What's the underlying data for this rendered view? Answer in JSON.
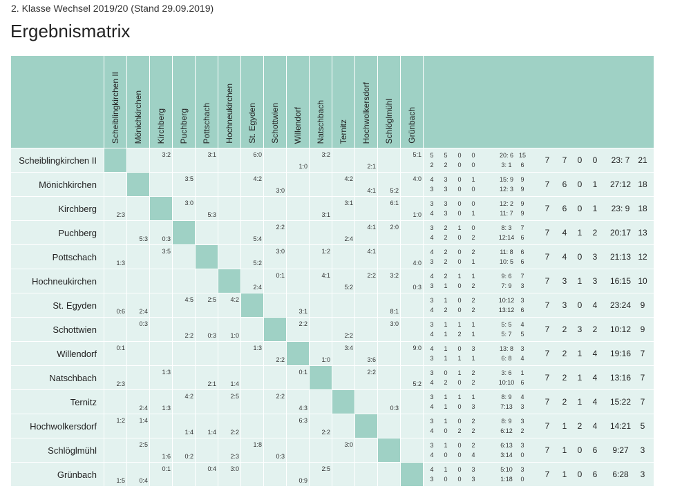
{
  "page": {
    "subtitle": "2. Klasse Wechsel 2019/20 (Stand 29.09.2019)",
    "title": "Ergebnismatrix"
  },
  "colors": {
    "header_bg": "#9fd1c5",
    "cell_bg": "#e3f2ef",
    "diagonal_bg": "#9fd1c5"
  },
  "teams": [
    "Scheiblingkirchen II",
    "Mönichkirchen",
    "Kirchberg",
    "Puchberg",
    "Pottschach",
    "Hochneukirchen",
    "St. Egyden",
    "Schottwien",
    "Willendorf",
    "Natschbach",
    "Ternitz",
    "Hochwolkersdorf",
    "Schlöglmühl",
    "Grünbach"
  ],
  "cells": [
    [
      null,
      null,
      {
        "h": "3:2"
      },
      null,
      {
        "h": "3:1"
      },
      null,
      {
        "h": "6:0"
      },
      null,
      {
        "a": "1:0"
      },
      {
        "h": "3:2"
      },
      null,
      {
        "a": "2:1"
      },
      null,
      {
        "h": "5:1"
      }
    ],
    [
      null,
      null,
      null,
      {
        "h": "3:5"
      },
      null,
      null,
      {
        "h": "4:2"
      },
      {
        "a": "3:0"
      },
      null,
      null,
      {
        "h": "4:2"
      },
      {
        "a": "4:1"
      },
      {
        "a": "5:2"
      },
      {
        "h": "4:0"
      }
    ],
    [
      {
        "a": "2:3"
      },
      null,
      null,
      {
        "h": "3:0"
      },
      {
        "a": "5:3"
      },
      null,
      null,
      null,
      null,
      {
        "a": "3:1"
      },
      {
        "h": "3:1"
      },
      null,
      {
        "h": "6:1"
      },
      {
        "a": "1:0"
      }
    ],
    [
      null,
      {
        "a": "5:3"
      },
      {
        "a": "0:3"
      },
      null,
      null,
      null,
      {
        "a": "5:4"
      },
      {
        "h": "2:2"
      },
      null,
      null,
      {
        "a": "2:4"
      },
      {
        "h": "4:1"
      },
      {
        "h": "2:0"
      },
      null
    ],
    [
      {
        "a": "1:3"
      },
      null,
      {
        "h": "3:5"
      },
      null,
      null,
      null,
      {
        "a": "5:2"
      },
      {
        "h": "3:0"
      },
      null,
      {
        "h": "1:2"
      },
      null,
      {
        "h": "4:1"
      },
      null,
      {
        "a": "4:0"
      }
    ],
    [
      null,
      null,
      null,
      null,
      null,
      null,
      {
        "a": "2:4"
      },
      {
        "h": "0:1"
      },
      null,
      {
        "h": "4:1"
      },
      {
        "a": "5:2"
      },
      {
        "h": "2:2"
      },
      {
        "h": "3:2"
      },
      {
        "a": "0:3"
      }
    ],
    [
      {
        "a": "0:6"
      },
      {
        "a": "2:4"
      },
      null,
      {
        "h": "4:5"
      },
      {
        "h": "2:5"
      },
      {
        "h": "4:2"
      },
      null,
      null,
      {
        "a": "3:1"
      },
      null,
      null,
      null,
      {
        "a": "8:1"
      },
      null
    ],
    [
      null,
      {
        "h": "0:3"
      },
      null,
      {
        "a": "2:2"
      },
      {
        "a": "0:3"
      },
      {
        "a": "1:0"
      },
      null,
      null,
      {
        "h": "2:2"
      },
      null,
      {
        "a": "2:2"
      },
      null,
      {
        "h": "3:0"
      },
      null
    ],
    [
      {
        "h": "0:1"
      },
      null,
      null,
      null,
      null,
      null,
      {
        "h": "1:3"
      },
      {
        "a": "2:2"
      },
      null,
      {
        "a": "1:0"
      },
      {
        "h": "3:4"
      },
      {
        "a": "3:6"
      },
      null,
      {
        "h": "9:0"
      }
    ],
    [
      {
        "a": "2:3"
      },
      null,
      {
        "h": "1:3"
      },
      null,
      {
        "a": "2:1"
      },
      {
        "a": "1:4"
      },
      null,
      null,
      {
        "h": "0:1"
      },
      null,
      null,
      {
        "h": "2:2"
      },
      null,
      {
        "a": "5:2"
      }
    ],
    [
      null,
      {
        "a": "2:4"
      },
      {
        "a": "1:3"
      },
      {
        "h": "4:2"
      },
      null,
      {
        "h": "2:5"
      },
      null,
      {
        "h": "2:2"
      },
      {
        "a": "4:3"
      },
      null,
      null,
      null,
      {
        "a": "0:3"
      },
      null
    ],
    [
      {
        "h": "1:2"
      },
      {
        "h": "1:4"
      },
      null,
      {
        "a": "1:4"
      },
      {
        "a": "1:4"
      },
      {
        "a": "2:2"
      },
      null,
      null,
      {
        "h": "6:3"
      },
      {
        "a": "2:2"
      },
      null,
      null,
      null,
      null
    ],
    [
      null,
      {
        "h": "2:5"
      },
      {
        "a": "1:6"
      },
      {
        "a": "0:2"
      },
      null,
      {
        "a": "2:3"
      },
      {
        "h": "1:8"
      },
      {
        "a": "0:3"
      },
      null,
      null,
      {
        "h": "3:0"
      },
      null,
      null,
      null
    ],
    [
      {
        "a": "1:5"
      },
      {
        "a": "0:4"
      },
      {
        "h": "0:1"
      },
      null,
      {
        "h": "0:4"
      },
      {
        "h": "3:0"
      },
      null,
      null,
      {
        "a": "0:9"
      },
      {
        "h": "2:5"
      },
      null,
      null,
      null,
      null
    ]
  ],
  "stats": [
    {
      "home": [
        "5",
        "5",
        "0",
        "0",
        "20: 6",
        "15"
      ],
      "away": [
        "2",
        "2",
        "0",
        "0",
        "3: 1",
        "6"
      ],
      "total": [
        "7",
        "7",
        "0",
        "0",
        "23: 7",
        "21"
      ]
    },
    {
      "home": [
        "4",
        "3",
        "0",
        "1",
        "15: 9",
        "9"
      ],
      "away": [
        "3",
        "3",
        "0",
        "0",
        "12: 3",
        "9"
      ],
      "total": [
        "7",
        "6",
        "0",
        "1",
        "27:12",
        "18"
      ]
    },
    {
      "home": [
        "3",
        "3",
        "0",
        "0",
        "12: 2",
        "9"
      ],
      "away": [
        "4",
        "3",
        "0",
        "1",
        "11: 7",
        "9"
      ],
      "total": [
        "7",
        "6",
        "0",
        "1",
        "23: 9",
        "18"
      ]
    },
    {
      "home": [
        "3",
        "2",
        "1",
        "0",
        "8: 3",
        "7"
      ],
      "away": [
        "4",
        "2",
        "0",
        "2",
        "12:14",
        "6"
      ],
      "total": [
        "7",
        "4",
        "1",
        "2",
        "20:17",
        "13"
      ]
    },
    {
      "home": [
        "4",
        "2",
        "0",
        "2",
        "11: 8",
        "6"
      ],
      "away": [
        "3",
        "2",
        "0",
        "1",
        "10: 5",
        "6"
      ],
      "total": [
        "7",
        "4",
        "0",
        "3",
        "21:13",
        "12"
      ]
    },
    {
      "home": [
        "4",
        "2",
        "1",
        "1",
        "9: 6",
        "7"
      ],
      "away": [
        "3",
        "1",
        "0",
        "2",
        "7: 9",
        "3"
      ],
      "total": [
        "7",
        "3",
        "1",
        "3",
        "16:15",
        "10"
      ]
    },
    {
      "home": [
        "3",
        "1",
        "0",
        "2",
        "10:12",
        "3"
      ],
      "away": [
        "4",
        "2",
        "0",
        "2",
        "13:12",
        "6"
      ],
      "total": [
        "7",
        "3",
        "0",
        "4",
        "23:24",
        "9"
      ]
    },
    {
      "home": [
        "3",
        "1",
        "1",
        "1",
        "5: 5",
        "4"
      ],
      "away": [
        "4",
        "1",
        "2",
        "1",
        "5: 7",
        "5"
      ],
      "total": [
        "7",
        "2",
        "3",
        "2",
        "10:12",
        "9"
      ]
    },
    {
      "home": [
        "4",
        "1",
        "0",
        "3",
        "13: 8",
        "3"
      ],
      "away": [
        "3",
        "1",
        "1",
        "1",
        "6: 8",
        "4"
      ],
      "total": [
        "7",
        "2",
        "1",
        "4",
        "19:16",
        "7"
      ]
    },
    {
      "home": [
        "3",
        "0",
        "1",
        "2",
        "3: 6",
        "1"
      ],
      "away": [
        "4",
        "2",
        "0",
        "2",
        "10:10",
        "6"
      ],
      "total": [
        "7",
        "2",
        "1",
        "4",
        "13:16",
        "7"
      ]
    },
    {
      "home": [
        "3",
        "1",
        "1",
        "1",
        "8: 9",
        "4"
      ],
      "away": [
        "4",
        "1",
        "0",
        "3",
        "7:13",
        "3"
      ],
      "total": [
        "7",
        "2",
        "1",
        "4",
        "15:22",
        "7"
      ]
    },
    {
      "home": [
        "3",
        "1",
        "0",
        "2",
        "8: 9",
        "3"
      ],
      "away": [
        "4",
        "0",
        "2",
        "2",
        "6:12",
        "2"
      ],
      "total": [
        "7",
        "1",
        "2",
        "4",
        "14:21",
        "5"
      ]
    },
    {
      "home": [
        "3",
        "1",
        "0",
        "2",
        "6:13",
        "3"
      ],
      "away": [
        "4",
        "0",
        "0",
        "4",
        "3:14",
        "0"
      ],
      "total": [
        "7",
        "1",
        "0",
        "6",
        "9:27",
        "3"
      ]
    },
    {
      "home": [
        "4",
        "1",
        "0",
        "3",
        "5:10",
        "3"
      ],
      "away": [
        "3",
        "0",
        "0",
        "3",
        "1:18",
        "0"
      ],
      "total": [
        "7",
        "1",
        "0",
        "6",
        "6:28",
        "3"
      ]
    }
  ]
}
